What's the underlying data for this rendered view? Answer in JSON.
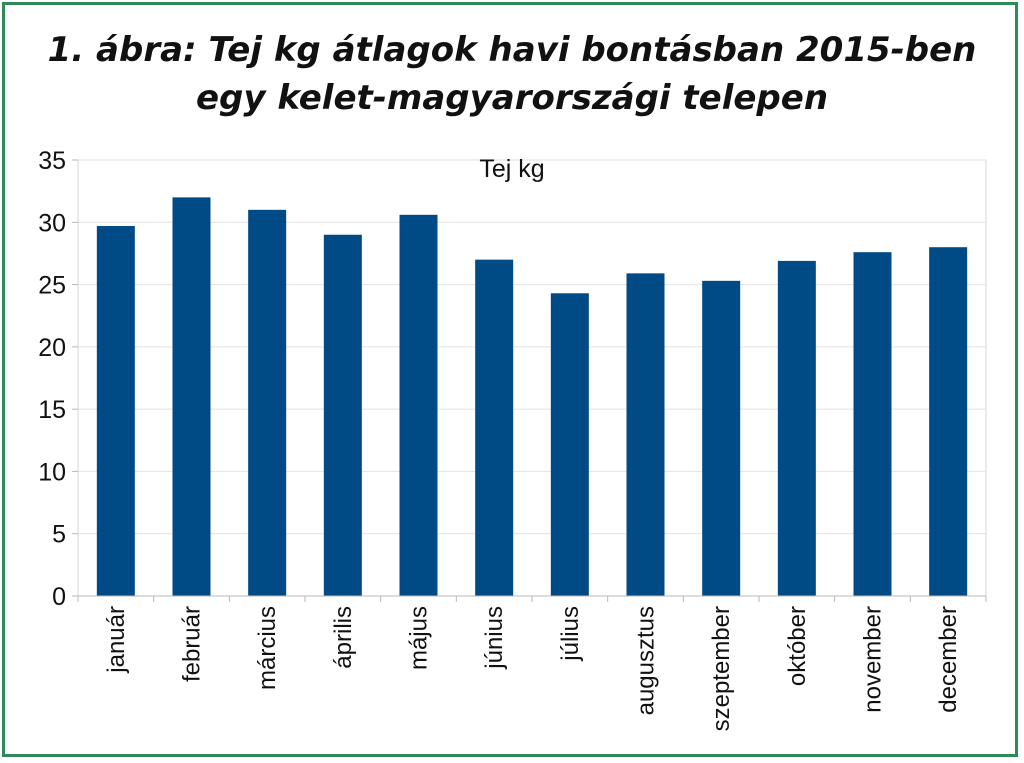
{
  "chart_data": {
    "type": "bar",
    "title_line1": "1. ábra: Tej kg átlagok havi bontásban 2015-ben",
    "title_line2": "egy kelet-magyarországi telepen",
    "series_label": "Tej kg",
    "categories": [
      "január",
      "február",
      "március",
      "április",
      "május",
      "június",
      "július",
      "augusztus",
      "szeptember",
      "október",
      "november",
      "december"
    ],
    "series": [
      {
        "name": "Tej kg",
        "values": [
          29.7,
          32.0,
          31.0,
          29.0,
          30.6,
          27.0,
          24.3,
          25.9,
          25.3,
          26.9,
          27.6,
          28.0
        ]
      }
    ],
    "ylim": [
      0,
      35
    ],
    "yticks": [
      0,
      5,
      10,
      15,
      20,
      25,
      30,
      35
    ],
    "bar_color": "#004a86",
    "grid": true,
    "xlabel": "",
    "ylabel": ""
  }
}
